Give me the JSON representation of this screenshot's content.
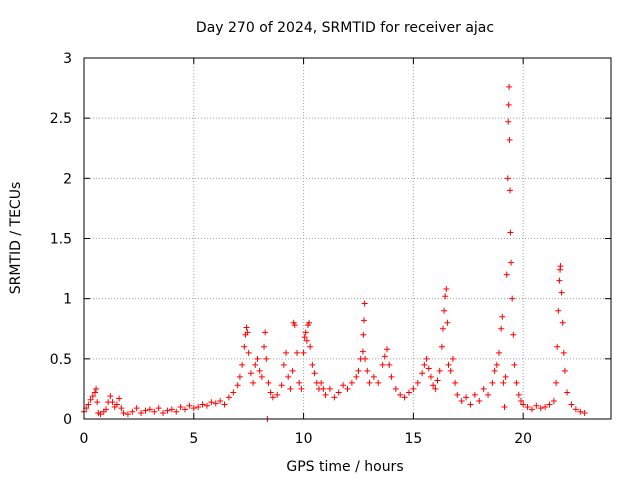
{
  "chart_data": {
    "type": "scatter",
    "title": "Day 270 of 2024, SRMTID for receiver ajac",
    "xlabel": "GPS time / hours",
    "ylabel": "SRMTID / TECUs",
    "xlim": [
      0,
      24
    ],
    "ylim": [
      0,
      3
    ],
    "xticks": [
      0,
      5,
      10,
      15,
      20
    ],
    "xtick_labels": [
      "0",
      "5",
      "10",
      "15",
      "20"
    ],
    "yticks": [
      0,
      0.5,
      1,
      1.5,
      2,
      2.5,
      3
    ],
    "ytick_labels": [
      "0",
      "0.5",
      "1",
      "1.5",
      "2",
      "2.5",
      "3"
    ],
    "grid": true,
    "marker": "+",
    "color": "#ff0000",
    "series": [
      {
        "name": "SRMTID",
        "points": [
          [
            0.0,
            0.06
          ],
          [
            0.1,
            0.09
          ],
          [
            0.2,
            0.12
          ],
          [
            0.3,
            0.16
          ],
          [
            0.4,
            0.19
          ],
          [
            0.5,
            0.22
          ],
          [
            0.55,
            0.25
          ],
          [
            0.6,
            0.14
          ],
          [
            0.65,
            0.05
          ],
          [
            0.75,
            0.04
          ],
          [
            0.9,
            0.06
          ],
          [
            1.0,
            0.08
          ],
          [
            1.1,
            0.14
          ],
          [
            1.2,
            0.19
          ],
          [
            1.3,
            0.14
          ],
          [
            1.4,
            0.1
          ],
          [
            1.5,
            0.12
          ],
          [
            1.6,
            0.17
          ],
          [
            1.7,
            0.09
          ],
          [
            1.8,
            0.05
          ],
          [
            2.0,
            0.04
          ],
          [
            2.2,
            0.06
          ],
          [
            2.4,
            0.09
          ],
          [
            2.6,
            0.05
          ],
          [
            2.8,
            0.07
          ],
          [
            3.0,
            0.08
          ],
          [
            3.2,
            0.06
          ],
          [
            3.4,
            0.09
          ],
          [
            3.6,
            0.05
          ],
          [
            3.8,
            0.07
          ],
          [
            4.0,
            0.08
          ],
          [
            4.2,
            0.06
          ],
          [
            4.4,
            0.1
          ],
          [
            4.6,
            0.08
          ],
          [
            4.8,
            0.11
          ],
          [
            5.0,
            0.09
          ],
          [
            5.2,
            0.1
          ],
          [
            5.4,
            0.12
          ],
          [
            5.6,
            0.11
          ],
          [
            5.8,
            0.14
          ],
          [
            6.0,
            0.13
          ],
          [
            6.2,
            0.15
          ],
          [
            6.4,
            0.12
          ],
          [
            6.6,
            0.18
          ],
          [
            6.8,
            0.22
          ],
          [
            7.0,
            0.28
          ],
          [
            7.1,
            0.35
          ],
          [
            7.2,
            0.45
          ],
          [
            7.3,
            0.6
          ],
          [
            7.35,
            0.7
          ],
          [
            7.4,
            0.76
          ],
          [
            7.45,
            0.72
          ],
          [
            7.5,
            0.55
          ],
          [
            7.6,
            0.38
          ],
          [
            7.7,
            0.3
          ],
          [
            7.8,
            0.45
          ],
          [
            7.9,
            0.5
          ],
          [
            8.0,
            0.4
          ],
          [
            8.1,
            0.35
          ],
          [
            8.2,
            0.6
          ],
          [
            8.25,
            0.72
          ],
          [
            8.3,
            0.5
          ],
          [
            8.35,
            0.0
          ],
          [
            8.4,
            0.3
          ],
          [
            8.5,
            0.22
          ],
          [
            8.6,
            0.18
          ],
          [
            8.8,
            0.2
          ],
          [
            9.0,
            0.28
          ],
          [
            9.1,
            0.45
          ],
          [
            9.2,
            0.55
          ],
          [
            9.3,
            0.35
          ],
          [
            9.4,
            0.25
          ],
          [
            9.5,
            0.4
          ],
          [
            9.55,
            0.8
          ],
          [
            9.6,
            0.78
          ],
          [
            9.7,
            0.55
          ],
          [
            9.8,
            0.3
          ],
          [
            9.9,
            0.25
          ],
          [
            10.0,
            0.55
          ],
          [
            10.05,
            0.68
          ],
          [
            10.1,
            0.72
          ],
          [
            10.15,
            0.65
          ],
          [
            10.2,
            0.78
          ],
          [
            10.25,
            0.8
          ],
          [
            10.3,
            0.6
          ],
          [
            10.4,
            0.45
          ],
          [
            10.5,
            0.38
          ],
          [
            10.6,
            0.3
          ],
          [
            10.7,
            0.25
          ],
          [
            10.8,
            0.3
          ],
          [
            10.9,
            0.25
          ],
          [
            11.0,
            0.2
          ],
          [
            11.2,
            0.25
          ],
          [
            11.4,
            0.18
          ],
          [
            11.6,
            0.22
          ],
          [
            11.8,
            0.28
          ],
          [
            12.0,
            0.25
          ],
          [
            12.2,
            0.3
          ],
          [
            12.4,
            0.35
          ],
          [
            12.5,
            0.4
          ],
          [
            12.6,
            0.5
          ],
          [
            12.7,
            0.56
          ],
          [
            12.72,
            0.7
          ],
          [
            12.75,
            0.82
          ],
          [
            12.78,
            0.96
          ],
          [
            12.8,
            0.5
          ],
          [
            12.9,
            0.4
          ],
          [
            13.0,
            0.3
          ],
          [
            13.2,
            0.35
          ],
          [
            13.4,
            0.3
          ],
          [
            13.6,
            0.45
          ],
          [
            13.7,
            0.52
          ],
          [
            13.8,
            0.58
          ],
          [
            13.9,
            0.45
          ],
          [
            14.0,
            0.35
          ],
          [
            14.2,
            0.25
          ],
          [
            14.4,
            0.2
          ],
          [
            14.6,
            0.18
          ],
          [
            14.8,
            0.22
          ],
          [
            15.0,
            0.25
          ],
          [
            15.2,
            0.3
          ],
          [
            15.4,
            0.38
          ],
          [
            15.5,
            0.45
          ],
          [
            15.6,
            0.5
          ],
          [
            15.7,
            0.42
          ],
          [
            15.8,
            0.35
          ],
          [
            15.9,
            0.28
          ],
          [
            16.0,
            0.25
          ],
          [
            16.1,
            0.32
          ],
          [
            16.2,
            0.4
          ],
          [
            16.3,
            0.6
          ],
          [
            16.35,
            0.75
          ],
          [
            16.4,
            0.9
          ],
          [
            16.45,
            1.02
          ],
          [
            16.5,
            1.08
          ],
          [
            16.55,
            0.8
          ],
          [
            16.6,
            0.45
          ],
          [
            16.7,
            0.4
          ],
          [
            16.8,
            0.5
          ],
          [
            16.9,
            0.3
          ],
          [
            17.0,
            0.2
          ],
          [
            17.2,
            0.15
          ],
          [
            17.4,
            0.18
          ],
          [
            17.6,
            0.12
          ],
          [
            17.8,
            0.2
          ],
          [
            18.0,
            0.15
          ],
          [
            18.2,
            0.25
          ],
          [
            18.4,
            0.2
          ],
          [
            18.6,
            0.3
          ],
          [
            18.7,
            0.4
          ],
          [
            18.8,
            0.45
          ],
          [
            18.9,
            0.55
          ],
          [
            19.0,
            0.75
          ],
          [
            19.05,
            0.85
          ],
          [
            19.1,
            0.3
          ],
          [
            19.15,
            0.1
          ],
          [
            19.2,
            0.35
          ],
          [
            19.25,
            1.2
          ],
          [
            19.3,
            2.0
          ],
          [
            19.32,
            2.47
          ],
          [
            19.34,
            2.61
          ],
          [
            19.36,
            2.76
          ],
          [
            19.38,
            2.32
          ],
          [
            19.4,
            1.9
          ],
          [
            19.42,
            1.55
          ],
          [
            19.45,
            1.3
          ],
          [
            19.5,
            1.0
          ],
          [
            19.55,
            0.7
          ],
          [
            19.6,
            0.45
          ],
          [
            19.7,
            0.3
          ],
          [
            19.8,
            0.2
          ],
          [
            19.9,
            0.15
          ],
          [
            20.0,
            0.12
          ],
          [
            20.2,
            0.1
          ],
          [
            20.4,
            0.08
          ],
          [
            20.6,
            0.11
          ],
          [
            20.8,
            0.09
          ],
          [
            21.0,
            0.1
          ],
          [
            21.2,
            0.12
          ],
          [
            21.4,
            0.15
          ],
          [
            21.5,
            0.3
          ],
          [
            21.55,
            0.6
          ],
          [
            21.6,
            0.9
          ],
          [
            21.65,
            1.15
          ],
          [
            21.68,
            1.24
          ],
          [
            21.7,
            1.27
          ],
          [
            21.75,
            1.05
          ],
          [
            21.8,
            0.8
          ],
          [
            21.85,
            0.55
          ],
          [
            21.9,
            0.4
          ],
          [
            22.0,
            0.22
          ],
          [
            22.2,
            0.12
          ],
          [
            22.4,
            0.08
          ],
          [
            22.6,
            0.06
          ],
          [
            22.8,
            0.05
          ]
        ]
      }
    ]
  }
}
